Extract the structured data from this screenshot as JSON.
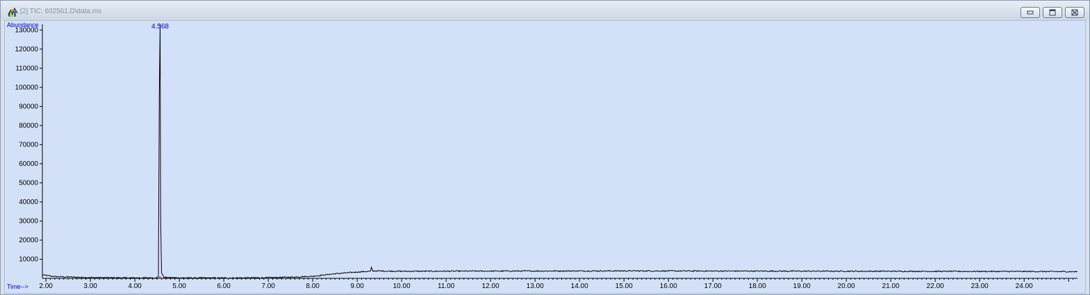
{
  "window": {
    "title": "[2] TIC: 602561.D\\data.ms",
    "icon": "chromatogram-app-icon",
    "buttons": {
      "minimize": "minimize-icon",
      "maximize": "maximize-icon",
      "close": "close-icon"
    }
  },
  "chart_data": {
    "type": "line",
    "ylabel": "Abundance",
    "xlabel": "Time-->",
    "xlim": [
      1.92,
      25.2
    ],
    "ylim": [
      0,
      133000
    ],
    "x_ticks": [
      2.0,
      3.0,
      4.0,
      5.0,
      6.0,
      7.0,
      8.0,
      9.0,
      10.0,
      11.0,
      12.0,
      13.0,
      14.0,
      15.0,
      16.0,
      17.0,
      18.0,
      19.0,
      20.0,
      21.0,
      22.0,
      23.0,
      24.0
    ],
    "x_tick_labels": [
      "2.00",
      "3.00",
      "4.00",
      "5.00",
      "6.00",
      "7.00",
      "8.00",
      "9.00",
      "10.00",
      "11.00",
      "12.00",
      "13.00",
      "14.00",
      "15.00",
      "16.00",
      "17.00",
      "18.00",
      "19.00",
      "20.00",
      "21.00",
      "22.00",
      "23.00",
      "24.00"
    ],
    "y_ticks": [
      10000,
      20000,
      30000,
      40000,
      50000,
      60000,
      70000,
      80000,
      90000,
      100000,
      110000,
      120000,
      130000
    ],
    "y_tick_labels": [
      "10000",
      "20000",
      "30000",
      "40000",
      "50000",
      "60000",
      "70000",
      "80000",
      "90000",
      "100000",
      "110000",
      "120000",
      "130000"
    ],
    "peaks": [
      {
        "rt": 4.568,
        "label": "4.568",
        "abundance": 133000
      }
    ],
    "baseline": [
      [
        1.92,
        1800
      ],
      [
        2.2,
        900
      ],
      [
        3.0,
        400
      ],
      [
        4.0,
        250
      ],
      [
        4.5,
        300
      ],
      [
        4.53,
        900
      ],
      [
        4.55,
        96000
      ],
      [
        4.568,
        133000
      ],
      [
        4.58,
        33000
      ],
      [
        4.6,
        3000
      ],
      [
        4.65,
        500
      ],
      [
        5.0,
        250
      ],
      [
        6.0,
        200
      ],
      [
        7.0,
        350
      ],
      [
        7.5,
        600
      ],
      [
        8.0,
        1100
      ],
      [
        8.5,
        2400
      ],
      [
        9.0,
        3300
      ],
      [
        9.3,
        3700
      ],
      [
        9.32,
        5600
      ],
      [
        9.35,
        3900
      ],
      [
        10.0,
        3700
      ],
      [
        12.0,
        3800
      ],
      [
        15.0,
        3900
      ],
      [
        18.0,
        3800
      ],
      [
        21.0,
        3700
      ],
      [
        24.0,
        3600
      ],
      [
        25.2,
        3500
      ]
    ],
    "colors": {
      "background": "#d3e1f8",
      "trace": "#000000",
      "axis_labels": "#0000cc",
      "peak_label": "#0000cc"
    },
    "grid": false
  }
}
